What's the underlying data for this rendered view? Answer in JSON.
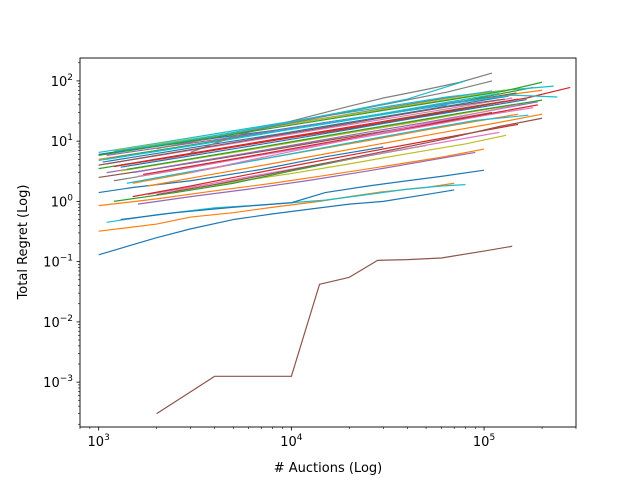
{
  "chart_data": {
    "type": "line",
    "title": "",
    "xlabel": "# Auctions (Log)",
    "ylabel": "Total Regret (Log)",
    "xscale": "log",
    "yscale": "log",
    "xlim": [
      800,
      300000
    ],
    "ylim": [
      0.00018,
      240
    ],
    "grid": false,
    "legend": "none",
    "x_ticks": [
      {
        "value": 1000,
        "base": "10",
        "exp": "3"
      },
      {
        "value": 10000,
        "base": "10",
        "exp": "4"
      },
      {
        "value": 100000,
        "base": "10",
        "exp": "5"
      }
    ],
    "y_ticks": [
      {
        "value": 0.001,
        "base": "10",
        "exp": "−3"
      },
      {
        "value": 0.01,
        "base": "10",
        "exp": "−2"
      },
      {
        "value": 0.1,
        "base": "10",
        "exp": "−1"
      },
      {
        "value": 1,
        "base": "10",
        "exp": "0"
      },
      {
        "value": 10,
        "base": "10",
        "exp": "1"
      },
      {
        "value": 100,
        "base": "10",
        "exp": "2"
      }
    ],
    "series": [
      {
        "color": "#8c564b",
        "x": [
          2000,
          4000,
          10000,
          14000,
          20000,
          28000,
          40000,
          60000,
          100000,
          140000
        ],
        "y": [
          0.0003,
          0.00125,
          0.00125,
          0.042,
          0.055,
          0.105,
          0.108,
          0.115,
          0.15,
          0.18
        ]
      },
      {
        "color": "#1f77b4",
        "x": [
          1000,
          2000,
          3000,
          5000,
          8000,
          14000,
          20000,
          30000,
          50000,
          70000
        ],
        "y": [
          0.13,
          0.25,
          0.35,
          0.5,
          0.62,
          0.78,
          0.9,
          1.0,
          1.3,
          1.55
        ]
      },
      {
        "color": "#ff7f0e",
        "x": [
          1000,
          2000,
          3000,
          5000,
          8000,
          14000,
          20000,
          30000,
          50000,
          70000
        ],
        "y": [
          0.32,
          0.42,
          0.55,
          0.65,
          0.8,
          1.0,
          1.2,
          1.45,
          1.7,
          2.0
        ]
      },
      {
        "color": "#17becf",
        "x": [
          1100,
          2000,
          4000,
          8000,
          15000,
          25000,
          40000,
          60000,
          80000
        ],
        "y": [
          0.45,
          0.6,
          0.78,
          0.9,
          1.05,
          1.3,
          1.6,
          1.8,
          1.9
        ]
      },
      {
        "color": "#1f77b4",
        "x": [
          1300,
          2500,
          5000,
          10000,
          15000,
          25000,
          40000,
          60000,
          100000
        ],
        "y": [
          0.5,
          0.65,
          0.8,
          0.95,
          1.4,
          1.8,
          2.2,
          2.6,
          3.3
        ]
      },
      {
        "color": "#ff7f0e",
        "x": [
          1000,
          2000,
          4000,
          8000,
          15000,
          30000,
          60000,
          100000
        ],
        "y": [
          0.85,
          1.1,
          1.5,
          2.0,
          2.7,
          3.8,
          5.4,
          7.4
        ]
      },
      {
        "color": "#9467bd",
        "x": [
          1600,
          3000,
          6000,
          12000,
          25000,
          50000,
          90000
        ],
        "y": [
          0.9,
          1.2,
          1.6,
          2.2,
          3.2,
          4.7,
          6.5
        ]
      },
      {
        "color": "#bcbd22",
        "x": [
          2500,
          5000,
          10000,
          20000,
          40000,
          80000,
          130000
        ],
        "y": [
          1.5,
          2.1,
          2.9,
          4.2,
          6.2,
          9.0,
          12.5
        ]
      },
      {
        "color": "#1f77b4",
        "x": [
          1000,
          1500,
          3000,
          7000,
          15000,
          30000
        ],
        "y": [
          1.4,
          1.7,
          2.2,
          3.4,
          5.5,
          8.0
        ]
      },
      {
        "color": "#2ca02c",
        "x": [
          1200,
          2500,
          5000,
          10000,
          20000,
          50000
        ],
        "y": [
          1.0,
          1.4,
          2.0,
          3.2,
          5.0,
          8.5
        ]
      },
      {
        "color": "#e377c2",
        "x": [
          1800,
          3600,
          7000,
          15000,
          30000,
          60000,
          120000
        ],
        "y": [
          1.3,
          1.9,
          2.8,
          4.3,
          6.4,
          9.5,
          14.0
        ]
      },
      {
        "color": "#d62728",
        "x": [
          1500,
          3000,
          6000,
          12000,
          24000,
          50000,
          100000,
          150000
        ],
        "y": [
          1.2,
          1.8,
          2.8,
          4.3,
          6.5,
          10.0,
          15.0,
          19.0
        ]
      },
      {
        "color": "#8c564b",
        "x": [
          1000,
          2000,
          4000,
          8000,
          16000,
          32000,
          64000,
          110000
        ],
        "y": [
          2.5,
          3.5,
          5.0,
          7.2,
          10.5,
          15.0,
          22.0,
          30.0
        ]
      },
      {
        "color": "#ff7f0e",
        "x": [
          1500,
          3000,
          6000,
          12000,
          24000,
          48000,
          96000,
          150000
        ],
        "y": [
          2.0,
          3.0,
          4.6,
          6.8,
          10.0,
          15.0,
          22.0,
          28.0
        ]
      },
      {
        "color": "#7f7f7f",
        "x": [
          1200,
          2400,
          4800,
          9600,
          19200,
          38400,
          76800,
          130000
        ],
        "y": [
          2.2,
          3.2,
          4.8,
          7.0,
          10.5,
          15.5,
          23.0,
          31.0
        ]
      },
      {
        "color": "#17becf",
        "x": [
          1400,
          2800,
          5600,
          11200,
          22400,
          44800,
          89600,
          170000
        ],
        "y": [
          2.0,
          3.0,
          4.4,
          6.6,
          10.0,
          15.0,
          22.0,
          27.0
        ]
      },
      {
        "color": "#9467bd",
        "x": [
          1100,
          2200,
          4400,
          8800,
          17600,
          35200,
          70400,
          140000
        ],
        "y": [
          3.0,
          4.3,
          6.2,
          9.0,
          13.0,
          19.0,
          28.0,
          40.0
        ]
      },
      {
        "color": "#bcbd22",
        "x": [
          1300,
          2600,
          5200,
          10400,
          20800,
          41600,
          83200,
          160000
        ],
        "y": [
          3.2,
          4.6,
          6.6,
          9.6,
          14.0,
          20.0,
          30.0,
          42.0
        ]
      },
      {
        "color": "#2ca02c",
        "x": [
          1000,
          2000,
          4000,
          8000,
          16000,
          32000,
          64000,
          128000
        ],
        "y": [
          3.5,
          5.0,
          7.2,
          10.5,
          15.0,
          22.0,
          32.0,
          46.0
        ]
      },
      {
        "color": "#d62728",
        "x": [
          1200,
          2400,
          4800,
          9600,
          19200,
          38400,
          76800,
          150000
        ],
        "y": [
          3.8,
          5.4,
          7.8,
          11.2,
          16.0,
          23.0,
          34.0,
          50.0
        ]
      },
      {
        "color": "#e377c2",
        "x": [
          1100,
          2200,
          4400,
          8800,
          17600,
          35200,
          70400,
          140000
        ],
        "y": [
          4.2,
          6.0,
          8.6,
          12.3,
          17.6,
          25.0,
          36.0,
          52.0
        ]
      },
      {
        "color": "#1f77b4",
        "x": [
          1050,
          2100,
          4200,
          8400,
          16800,
          33600,
          67200,
          134400
        ],
        "y": [
          4.5,
          6.4,
          9.2,
          13.0,
          18.8,
          27.0,
          39.0,
          56.0
        ]
      },
      {
        "color": "#ff7f0e",
        "x": [
          1000,
          2000,
          4000,
          8000,
          16000,
          32000,
          64000,
          128000,
          200000
        ],
        "y": [
          5.0,
          7.0,
          10.0,
          14.5,
          20.5,
          29.0,
          42.0,
          58.0,
          70.0
        ]
      },
      {
        "color": "#8c564b",
        "x": [
          1150,
          2300,
          4600,
          9200,
          18400,
          36800,
          73600,
          147200
        ],
        "y": [
          5.2,
          7.4,
          10.6,
          15.2,
          21.6,
          31.0,
          44.0,
          63.0
        ]
      },
      {
        "color": "#2ca02c",
        "x": [
          1250,
          2500,
          5000,
          10000,
          20000,
          40000,
          80000,
          180000
        ],
        "y": [
          5.5,
          7.8,
          11.2,
          16.0,
          23.0,
          33.0,
          47.0,
          78.0
        ]
      },
      {
        "color": "#7f7f7f",
        "x": [
          1000,
          2000,
          4000,
          8000,
          16000,
          32000,
          64000,
          110000
        ],
        "y": [
          6.0,
          8.5,
          12.2,
          17.6,
          25.0,
          36.0,
          52.0,
          68.0
        ]
      },
      {
        "color": "#17becf",
        "x": [
          1000,
          2000,
          4000,
          8000,
          16000,
          32000,
          64000,
          128000,
          230000
        ],
        "y": [
          6.5,
          9.2,
          13.2,
          19.0,
          27.0,
          38.0,
          54.0,
          70.0,
          82.0
        ]
      },
      {
        "color": "#1f77b4",
        "x": [
          1000,
          2000,
          4000,
          8000,
          16000,
          32000,
          64000
        ],
        "y": [
          6.0,
          8.2,
          11.2,
          15.0,
          21.0,
          29.0,
          40.0
        ]
      },
      {
        "color": "#d62728",
        "x": [
          1300,
          2600,
          5200,
          10400,
          20800,
          41600,
          83200,
          166400,
          280000
        ],
        "y": [
          4.0,
          5.8,
          8.4,
          12.2,
          17.5,
          25.0,
          36.0,
          52.0,
          78.0
        ]
      },
      {
        "color": "#bcbd22",
        "x": [
          1200,
          2400,
          4800,
          9600,
          19200,
          38400,
          76800,
          153600
        ],
        "y": [
          7.0,
          9.7,
          13.5,
          19.0,
          27.0,
          38.0,
          54.0,
          76.0
        ]
      },
      {
        "color": "#9467bd",
        "x": [
          1100,
          2200,
          4400,
          8800,
          17600,
          35200,
          70400,
          120000
        ],
        "y": [
          5.8,
          8.0,
          11.0,
          15.5,
          22.0,
          31.0,
          44.0,
          55.0
        ]
      },
      {
        "color": "#17becf",
        "x": [
          1000,
          2000,
          4000,
          8000,
          16000,
          32000,
          64000,
          120000
        ],
        "y": [
          4.8,
          6.8,
          9.8,
          14.2,
          20.5,
          30.0,
          44.0,
          62.0
        ]
      },
      {
        "color": "#8c564b",
        "x": [
          2000,
          4000,
          8000,
          16000,
          32000,
          64000,
          120000,
          200000
        ],
        "y": [
          1.3,
          1.9,
          2.9,
          4.5,
          7.0,
          11.0,
          17.5,
          24.0
        ]
      },
      {
        "color": "#e377c2",
        "x": [
          1600,
          3200,
          6400,
          12800,
          25600,
          51200,
          102400,
          180000
        ],
        "y": [
          2.6,
          3.8,
          5.6,
          8.3,
          12.2,
          18.0,
          27.0,
          36.0
        ]
      },
      {
        "color": "#2ca02c",
        "x": [
          1400,
          2800,
          5600,
          11200,
          22400,
          44800,
          89600,
          200000
        ],
        "y": [
          3.4,
          4.9,
          7.1,
          10.4,
          15.2,
          22.0,
          32.0,
          48.0
        ]
      },
      {
        "color": "#ff7f0e",
        "x": [
          1800,
          3600,
          7200,
          14400,
          28800,
          57600,
          115200,
          200000
        ],
        "y": [
          1.8,
          2.7,
          4.0,
          6.0,
          9.0,
          13.5,
          20.0,
          28.0
        ]
      },
      {
        "color": "#9467bd",
        "x": [
          1500,
          3000,
          6000,
          12000,
          24000,
          48000,
          96000,
          190000
        ],
        "y": [
          3.0,
          4.4,
          6.4,
          9.4,
          13.8,
          20.0,
          30.0,
          45.0
        ]
      },
      {
        "color": "#d62728",
        "x": [
          1700,
          3400,
          6800,
          13600,
          27200,
          54400,
          108800,
          190000
        ],
        "y": [
          2.8,
          4.1,
          6.0,
          8.9,
          13.2,
          19.5,
          29.0,
          40.0
        ]
      },
      {
        "color": "#17becf",
        "x": [
          1100,
          2200,
          4400,
          8800,
          17600,
          35200,
          70400,
          140000,
          240000
        ],
        "y": [
          5.0,
          7.1,
          10.2,
          14.7,
          21.0,
          30.0,
          43.0,
          58.0,
          54.0
        ]
      },
      {
        "color": "#7f7f7f",
        "x": [
          2000,
          4000,
          8000,
          16000,
          32000,
          64000,
          110000
        ],
        "y": [
          7.5,
          11.5,
          17.5,
          27.0,
          42.0,
          65.0,
          100.0
        ]
      },
      {
        "color": "#7f7f7f",
        "x": [
          3000,
          5000,
          8000,
          12000,
          20000,
          30000,
          50000,
          75000,
          110000
        ],
        "y": [
          6.5,
          12.0,
          18.0,
          25.0,
          38.0,
          52.0,
          72.0,
          95.0,
          135.0
        ]
      },
      {
        "color": "#17becf",
        "x": [
          1200,
          2500,
          5000,
          10000,
          20000,
          40000,
          80000
        ],
        "y": [
          6.8,
          9.5,
          14.0,
          21.0,
          32.0,
          50.0,
          100.0
        ]
      },
      {
        "color": "#2ca02c",
        "x": [
          1000,
          2000,
          4000,
          8000,
          16000,
          32000,
          64000,
          128000,
          200000
        ],
        "y": [
          5.8,
          8.2,
          11.6,
          16.5,
          23.5,
          33.5,
          47.5,
          68.0,
          95.0
        ]
      },
      {
        "color": "#e377c2",
        "x": [
          3000,
          6000,
          12000,
          24000,
          48000,
          96000,
          150000
        ],
        "y": [
          3.0,
          4.8,
          7.6,
          12.0,
          19.0,
          30.0,
          40.0
        ]
      },
      {
        "color": "#8c564b",
        "x": [
          1000,
          2000,
          4000,
          8000,
          16000,
          32000,
          64000,
          128000
        ],
        "y": [
          4.0,
          5.8,
          8.4,
          12.2,
          17.5,
          25.5,
          37.0,
          50.0
        ]
      },
      {
        "color": "#1f77b4",
        "x": [
          1300,
          2600,
          5200,
          10400,
          20800,
          41600,
          83200,
          166400
        ],
        "y": [
          3.7,
          5.3,
          7.6,
          11.0,
          16.0,
          23.5,
          34.0,
          49.0
        ]
      }
    ]
  }
}
